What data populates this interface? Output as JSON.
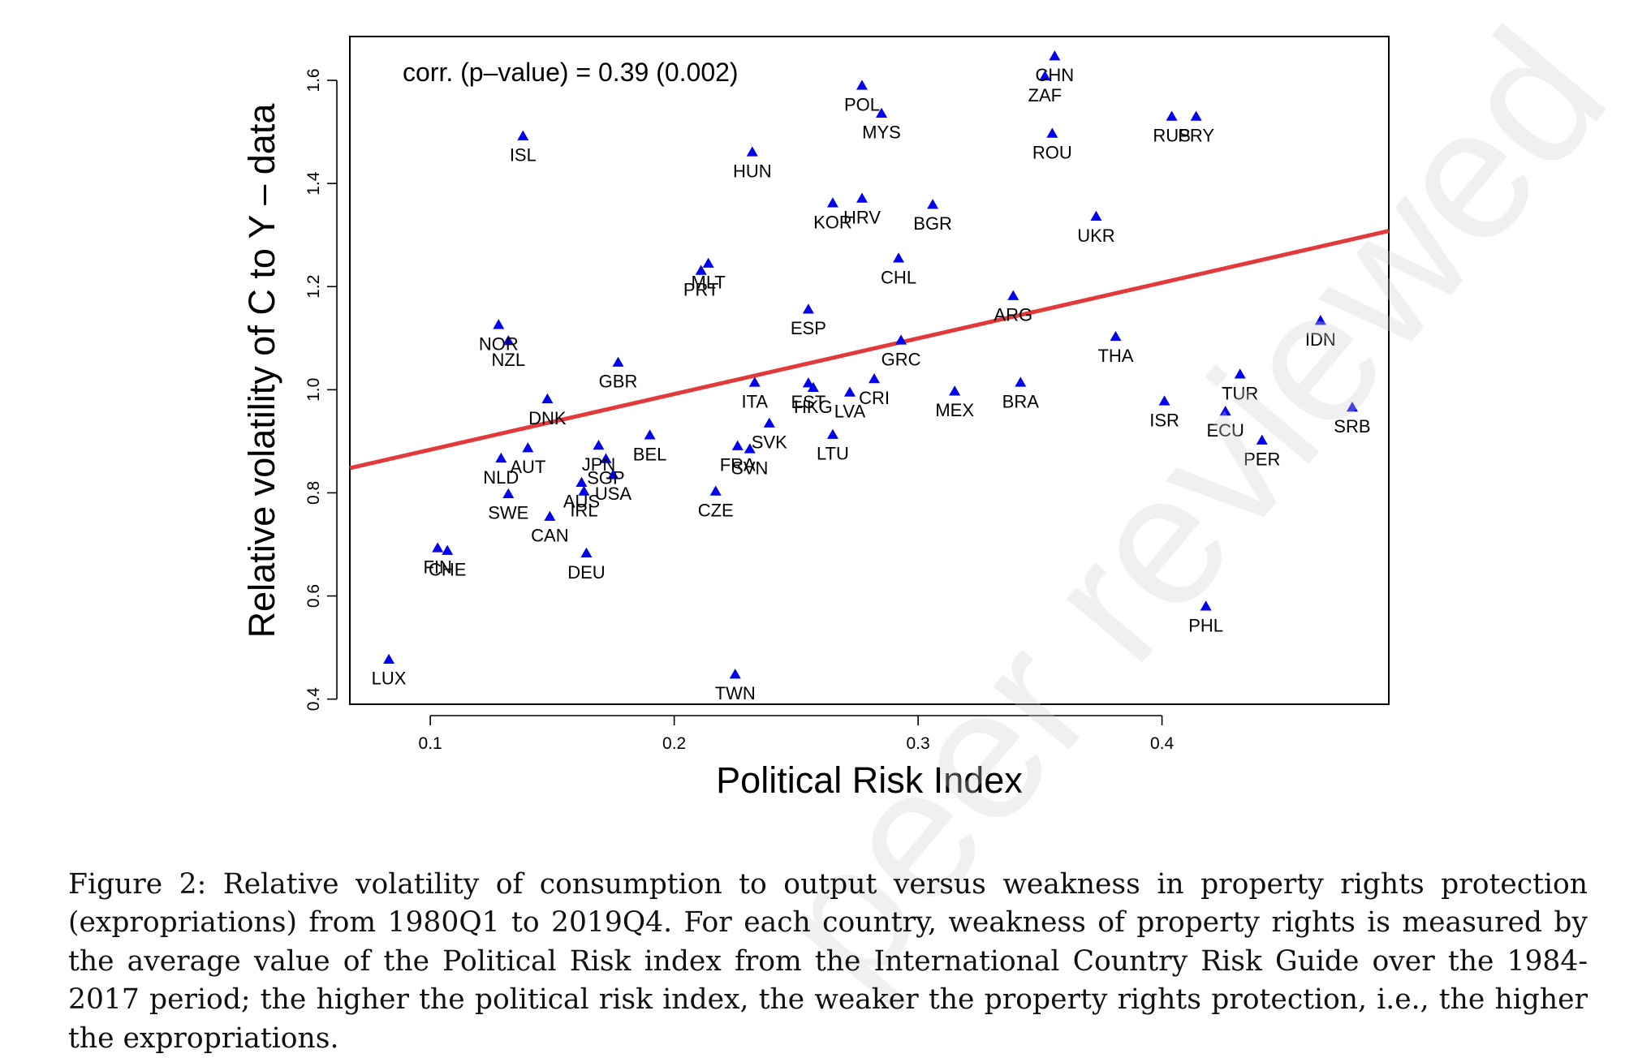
{
  "chart_data": {
    "type": "scatter",
    "xlabel": "Political Risk Index",
    "ylabel": "Relative volatility of C to Y – data",
    "xlim": [
      0.067,
      0.493
    ],
    "ylim": [
      0.39,
      1.685
    ],
    "xticks": [
      0.1,
      0.2,
      0.3,
      0.4
    ],
    "yticks": [
      0.4,
      0.6,
      0.8,
      1.0,
      1.2,
      1.4,
      1.6
    ],
    "x_tick_labels": [
      "0.1",
      "0.2",
      "0.3",
      "0.4"
    ],
    "y_tick_labels": [
      "0.4",
      "0.6",
      "0.8",
      "1.0",
      "1.2",
      "1.4",
      "1.6"
    ],
    "annotation": "corr. (p–value) = 0.39 (0.002)",
    "marker_color": "#0000ee",
    "line_color": "#e23a3a",
    "fit_line": {
      "x": [
        0.067,
        0.493
      ],
      "y": [
        0.848,
        1.308
      ]
    },
    "points": [
      {
        "label": "LUX",
        "x": 0.083,
        "y": 0.477
      },
      {
        "label": "FIN",
        "x": 0.103,
        "y": 0.693
      },
      {
        "label": "CHE",
        "x": 0.107,
        "y": 0.688
      },
      {
        "label": "NOR",
        "x": 0.128,
        "y": 1.126
      },
      {
        "label": "NZL",
        "x": 0.132,
        "y": 1.095
      },
      {
        "label": "NLD",
        "x": 0.129,
        "y": 0.867
      },
      {
        "label": "SWE",
        "x": 0.132,
        "y": 0.798
      },
      {
        "label": "ISL",
        "x": 0.138,
        "y": 1.492
      },
      {
        "label": "AUT",
        "x": 0.14,
        "y": 0.887
      },
      {
        "label": "DNK",
        "x": 0.148,
        "y": 0.982
      },
      {
        "label": "CAN",
        "x": 0.149,
        "y": 0.754
      },
      {
        "label": "AUS",
        "x": 0.162,
        "y": 0.82
      },
      {
        "label": "IRL",
        "x": 0.163,
        "y": 0.803
      },
      {
        "label": "DEU",
        "x": 0.164,
        "y": 0.683
      },
      {
        "label": "JPN",
        "x": 0.169,
        "y": 0.892
      },
      {
        "label": "SGP",
        "x": 0.172,
        "y": 0.866
      },
      {
        "label": "USA",
        "x": 0.175,
        "y": 0.835
      },
      {
        "label": "GBR",
        "x": 0.177,
        "y": 1.053
      },
      {
        "label": "BEL",
        "x": 0.19,
        "y": 0.912
      },
      {
        "label": "PRT",
        "x": 0.211,
        "y": 1.231
      },
      {
        "label": "MLT",
        "x": 0.214,
        "y": 1.245
      },
      {
        "label": "CZE",
        "x": 0.217,
        "y": 0.803
      },
      {
        "label": "TWN",
        "x": 0.225,
        "y": 0.448
      },
      {
        "label": "FRA",
        "x": 0.226,
        "y": 0.891
      },
      {
        "label": "SVN",
        "x": 0.231,
        "y": 0.885
      },
      {
        "label": "HUN",
        "x": 0.232,
        "y": 1.461
      },
      {
        "label": "ITA",
        "x": 0.233,
        "y": 1.014
      },
      {
        "label": "SVK",
        "x": 0.239,
        "y": 0.935
      },
      {
        "label": "EST",
        "x": 0.255,
        "y": 1.013
      },
      {
        "label": "HKG",
        "x": 0.257,
        "y": 1.004
      },
      {
        "label": "ESP",
        "x": 0.255,
        "y": 1.156
      },
      {
        "label": "KOR",
        "x": 0.265,
        "y": 1.362
      },
      {
        "label": "LTU",
        "x": 0.265,
        "y": 0.913
      },
      {
        "label": "LVA",
        "x": 0.272,
        "y": 0.995
      },
      {
        "label": "HRV",
        "x": 0.277,
        "y": 1.371
      },
      {
        "label": "POL",
        "x": 0.277,
        "y": 1.59
      },
      {
        "label": "CRI",
        "x": 0.282,
        "y": 1.021
      },
      {
        "label": "MYS",
        "x": 0.285,
        "y": 1.536
      },
      {
        "label": "CHL",
        "x": 0.292,
        "y": 1.255
      },
      {
        "label": "GRC",
        "x": 0.293,
        "y": 1.096
      },
      {
        "label": "BGR",
        "x": 0.306,
        "y": 1.359
      },
      {
        "label": "MEX",
        "x": 0.315,
        "y": 0.997
      },
      {
        "label": "ARG",
        "x": 0.339,
        "y": 1.182
      },
      {
        "label": "BRA",
        "x": 0.342,
        "y": 1.014
      },
      {
        "label": "ZAF",
        "x": 0.352,
        "y": 1.608
      },
      {
        "label": "CHN",
        "x": 0.356,
        "y": 1.647
      },
      {
        "label": "ROU",
        "x": 0.355,
        "y": 1.497
      },
      {
        "label": "UKR",
        "x": 0.373,
        "y": 1.336
      },
      {
        "label": "THA",
        "x": 0.381,
        "y": 1.103
      },
      {
        "label": "ISR",
        "x": 0.401,
        "y": 0.978
      },
      {
        "label": "RUS",
        "x": 0.404,
        "y": 1.53
      },
      {
        "label": "PRY",
        "x": 0.414,
        "y": 1.53
      },
      {
        "label": "PHL",
        "x": 0.418,
        "y": 0.58
      },
      {
        "label": "ECU",
        "x": 0.426,
        "y": 0.958
      },
      {
        "label": "TUR",
        "x": 0.432,
        "y": 1.03
      },
      {
        "label": "PER",
        "x": 0.441,
        "y": 0.902
      },
      {
        "label": "IDN",
        "x": 0.465,
        "y": 1.134
      },
      {
        "label": "SRB",
        "x": 0.478,
        "y": 0.966
      }
    ]
  },
  "watermark": "peer reviewed",
  "caption": "Figure 2: Relative volatility of consumption to output versus weakness in property rights protection (expropriations) from 1980Q1 to 2019Q4. For each country, weakness of property rights is measured by the average value of the Political Risk index from the International Country Risk Guide over the 1984-2017 period; the higher the political risk index, the weaker the property rights protection, i.e., the higher the expropriations."
}
